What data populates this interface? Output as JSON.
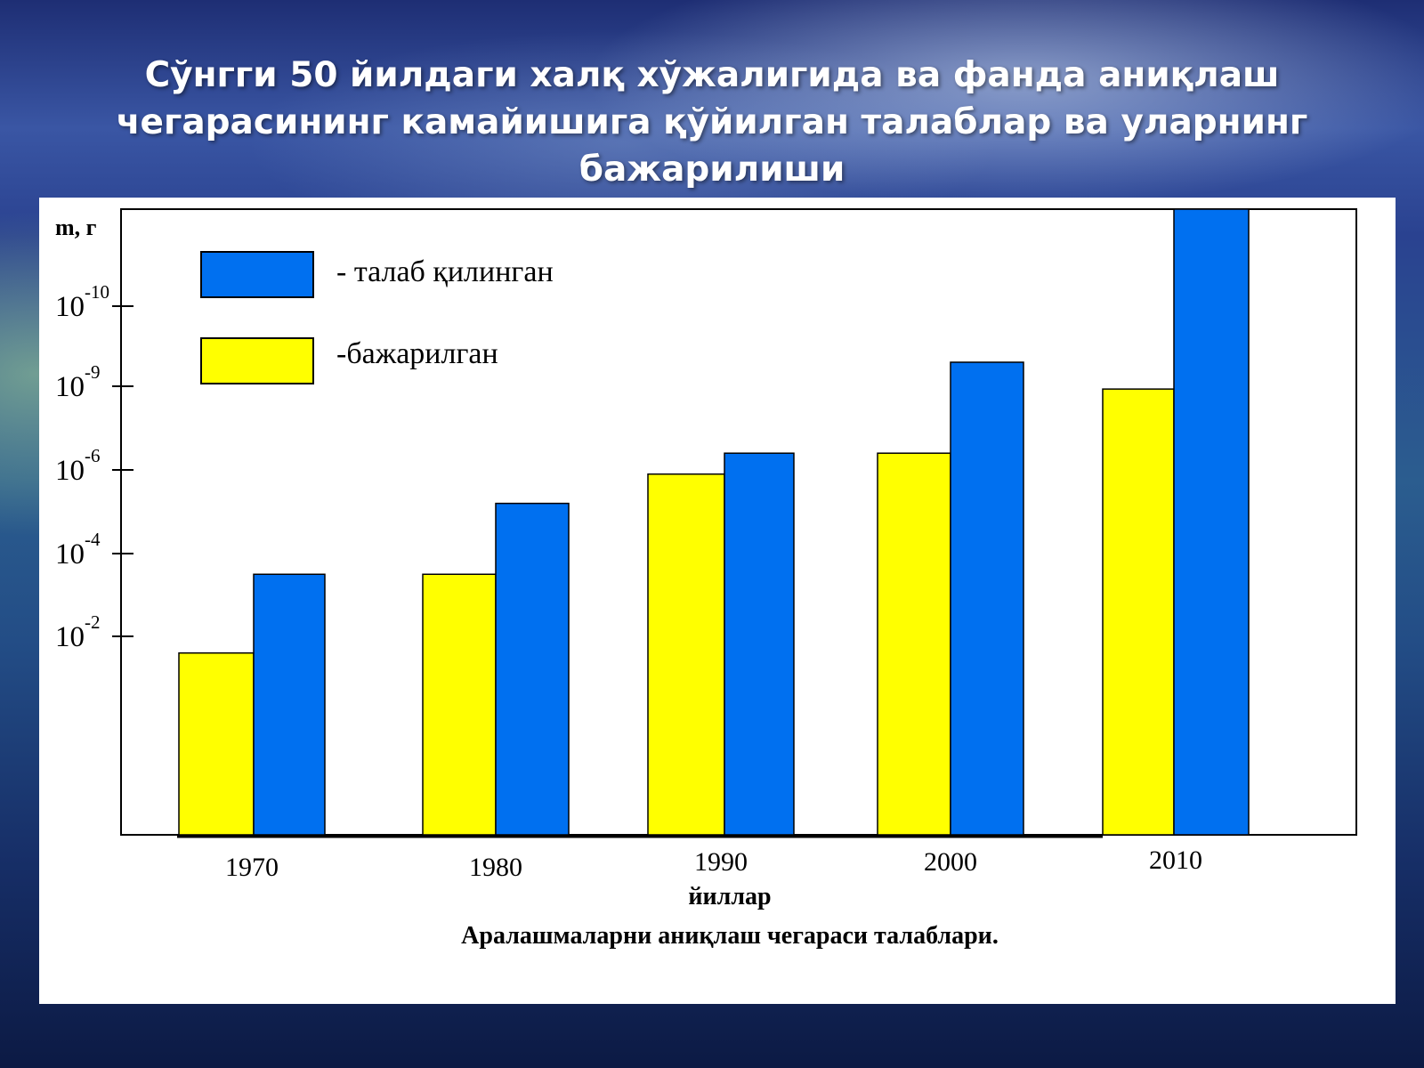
{
  "slide": {
    "title_lines": [
      "Сўнгги 50 йилдаги халқ хўжалигида ва фанда аниқлаш",
      "чегарасининг камайишига қўйилган талаблар ва уларнинг",
      "бажарилиши"
    ]
  },
  "chart_data": {
    "type": "bar",
    "categories": [
      "1970",
      "1980",
      "1990",
      "2000",
      "2010"
    ],
    "series": [
      {
        "name": "-бажарилган",
        "color": "#ffff00",
        "values_exponent": [
          -1.8,
          -3.5,
          -5.9,
          -6.6,
          -8.9
        ]
      },
      {
        "name": "- талаб қилинган",
        "color": "#0070f0",
        "values_exponent": [
          -3.5,
          -5.2,
          -6.6,
          -9.3,
          -11.0
        ]
      }
    ],
    "value_note": "values are powers of ten (m = 10^value г)",
    "y_scale": "log",
    "ylabel": "m, г",
    "xlabel": "йиллар",
    "caption": "Аралашмаларни аниқлаш чегараси талаблари.",
    "yticks": [
      {
        "base": "10",
        "exp": "-2",
        "value": -2
      },
      {
        "base": "10",
        "exp": "-4",
        "value": -4
      },
      {
        "base": "10",
        "exp": "-6",
        "value": -6
      },
      {
        "base": "10",
        "exp": "-9",
        "value": -9
      },
      {
        "base": "10",
        "exp": "-10",
        "value": -10
      }
    ],
    "legend_position": "top-left",
    "grid": false
  }
}
